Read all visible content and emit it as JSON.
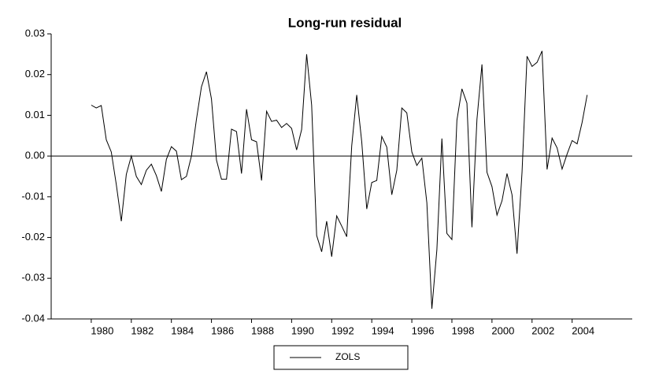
{
  "chart_data": {
    "type": "line",
    "title": "Long-run residual",
    "x": [
      1980,
      1980.25,
      1980.5,
      1980.75,
      1981,
      1981.25,
      1981.5,
      1981.75,
      1982,
      1982.25,
      1982.5,
      1982.75,
      1983,
      1983.25,
      1983.5,
      1983.75,
      1984,
      1984.25,
      1984.5,
      1984.75,
      1985,
      1985.25,
      1985.5,
      1985.75,
      1986,
      1986.25,
      1986.5,
      1986.75,
      1987,
      1987.25,
      1987.5,
      1987.75,
      1988,
      1988.25,
      1988.5,
      1988.75,
      1989,
      1989.25,
      1989.5,
      1989.75,
      1990,
      1990.25,
      1990.5,
      1990.75,
      1991,
      1991.25,
      1991.5,
      1991.75,
      1992,
      1992.25,
      1992.5,
      1992.75,
      1993,
      1993.25,
      1993.5,
      1993.75,
      1994,
      1994.25,
      1994.5,
      1994.75,
      1995,
      1995.25,
      1995.5,
      1995.75,
      1996,
      1996.25,
      1996.5,
      1996.75,
      1997,
      1997.25,
      1997.5,
      1997.75,
      1998,
      1998.25,
      1998.5,
      1998.75,
      1999,
      1999.25,
      1999.5,
      1999.75,
      2000,
      2000.25,
      2000.5,
      2000.75,
      2001,
      2001.25,
      2001.5,
      2001.75,
      2002,
      2002.25,
      2002.5,
      2002.75,
      2003,
      2003.25,
      2003.5,
      2003.75,
      2004,
      2004.25,
      2004.5,
      2004.75
    ],
    "series": [
      {
        "name": "ZOLS",
        "color": "#000000",
        "values": [
          0.0125,
          0.0118,
          0.0124,
          0.004,
          0.001,
          -0.007,
          -0.016,
          -0.0045,
          0.0,
          -0.005,
          -0.007,
          -0.0035,
          -0.002,
          -0.0048,
          -0.0087,
          -0.0008,
          0.0023,
          0.0012,
          -0.0058,
          -0.005,
          0.0,
          0.009,
          0.017,
          0.0207,
          0.014,
          -0.001,
          -0.0057,
          -0.0057,
          0.0066,
          0.006,
          -0.0043,
          0.0115,
          0.004,
          0.0035,
          -0.006,
          0.011,
          0.0085,
          0.0088,
          0.007,
          0.008,
          0.0068,
          0.0015,
          0.0065,
          0.025,
          0.0125,
          -0.0195,
          -0.0235,
          -0.016,
          -0.0247,
          -0.0147,
          -0.0172,
          -0.0198,
          0.0025,
          0.015,
          0.0035,
          -0.013,
          -0.0065,
          -0.006,
          0.0048,
          0.0022,
          -0.0095,
          -0.0035,
          0.0118,
          0.0106,
          0.001,
          -0.0023,
          -0.0005,
          -0.0115,
          -0.0375,
          -0.023,
          0.0043,
          -0.019,
          -0.0205,
          0.0088,
          0.0165,
          0.013,
          -0.0175,
          0.009,
          0.0225,
          -0.004,
          -0.0075,
          -0.0145,
          -0.011,
          -0.0043,
          -0.0095,
          -0.024,
          -0.004,
          0.0245,
          0.022,
          0.023,
          0.0258,
          -0.0033,
          0.0044,
          0.002,
          -0.0032,
          0.0005,
          0.0038,
          0.003,
          0.0083,
          0.015
        ]
      }
    ],
    "xlim": [
      1978,
      2007
    ],
    "xticks": [
      1980,
      1982,
      1984,
      1986,
      1988,
      1990,
      1992,
      1994,
      1996,
      1998,
      2000,
      2002,
      2004
    ],
    "ylim": [
      -0.04,
      0.03
    ],
    "yticks": [
      -0.04,
      -0.03,
      -0.02,
      -0.01,
      {
        "value": 0,
        "label": "0.00"
      },
      0.01,
      0.02,
      0.03
    ],
    "zero_line": true,
    "legend": "bottom"
  }
}
